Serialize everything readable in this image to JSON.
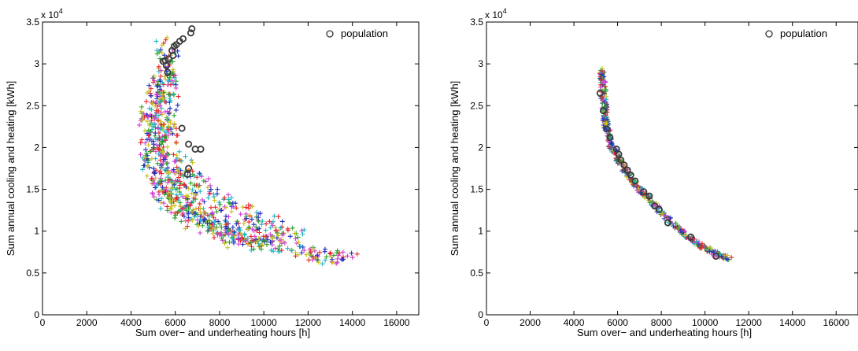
{
  "chart_data": [
    {
      "type": "scatter",
      "xlabel": "Sum over− and underheating hours [h]",
      "ylabel": "Sum annual cooling and heating [kWh]",
      "xlim": [
        0,
        17000
      ],
      "ylim": [
        0,
        35000
      ],
      "xticks": [
        "0",
        "2000",
        "4000",
        "6000",
        "8000",
        "10000",
        "12000",
        "14000",
        "16000"
      ],
      "yticks": [
        "0",
        "0.5",
        "1",
        "1.5",
        "2",
        "2.5",
        "3",
        "3.5"
      ],
      "y_multiplier": "x 10",
      "y_multiplier_exp": "4",
      "legend": {
        "label": "population",
        "position": "top-right"
      },
      "generation_colors": [
        "#e6262a",
        "#2aa02a",
        "#1f2fbf",
        "#22b5c4",
        "#d23fd2",
        "#c8c020",
        "#555555"
      ],
      "population": [
        [
          6750,
          34200
        ],
        [
          6700,
          33700
        ],
        [
          6350,
          33000
        ],
        [
          6200,
          32700
        ],
        [
          6050,
          32300
        ],
        [
          5950,
          32100
        ],
        [
          5850,
          31600
        ],
        [
          5900,
          31000
        ],
        [
          5700,
          30600
        ],
        [
          5550,
          30400
        ],
        [
          5450,
          30300
        ],
        [
          5600,
          29800
        ],
        [
          5650,
          29000
        ],
        [
          6300,
          22300
        ],
        [
          6600,
          20400
        ],
        [
          6900,
          19800
        ],
        [
          7150,
          19800
        ],
        [
          6600,
          17500
        ],
        [
          6550,
          16800
        ]
      ],
      "cloud_bands": [
        {
          "x": [
            5600,
            5400,
            5100,
            4900,
            4900,
            5100,
            5500,
            6000,
            6600,
            7300,
            8200,
            9200,
            10300,
            11500,
            12800,
            13500
          ],
          "y": [
            33000,
            29000,
            26000,
            23000,
            20000,
            18000,
            16000,
            14500,
            13000,
            11800,
            10600,
            9500,
            8600,
            7800,
            7000,
            6500
          ]
        },
        {
          "x": [
            5800,
            5700,
            5600,
            5500,
            5600,
            5900,
            6400,
            7000,
            7700,
            8500,
            9400,
            10500,
            11600
          ],
          "y": [
            32000,
            28500,
            25000,
            22500,
            20500,
            18500,
            16800,
            15300,
            14000,
            12800,
            11600,
            10400,
            9300
          ]
        },
        {
          "x": [
            5400,
            5300,
            5200,
            5100,
            5200,
            5500,
            6000,
            6600,
            7300,
            8100,
            9000,
            10000
          ],
          "y": [
            28000,
            25000,
            22000,
            19500,
            17000,
            15000,
            13200,
            11800,
            10600,
            9600,
            8800,
            8100
          ]
        }
      ]
    },
    {
      "type": "scatter",
      "xlabel": "Sum over− and underheating hours [h]",
      "ylabel": "Sum annual cooling and heating [kWh]",
      "xlim": [
        0,
        17000
      ],
      "ylim": [
        0,
        35000
      ],
      "xticks": [
        "0",
        "2000",
        "4000",
        "6000",
        "8000",
        "10000",
        "12000",
        "14000",
        "16000"
      ],
      "yticks": [
        "0",
        "0.5",
        "1",
        "1.5",
        "2",
        "2.5",
        "3",
        "3.5"
      ],
      "y_multiplier": "x 10",
      "y_multiplier_exp": "4",
      "legend": {
        "label": "population",
        "position": "top-right"
      },
      "generation_colors": [
        "#e6262a",
        "#2aa02a",
        "#1f2fbf",
        "#22b5c4",
        "#d23fd2",
        "#c8c020",
        "#555555"
      ],
      "population": [
        [
          5200,
          26500
        ],
        [
          5350,
          24400
        ],
        [
          5500,
          22200
        ],
        [
          5650,
          21200
        ],
        [
          5950,
          19800
        ],
        [
          6050,
          19200
        ],
        [
          6150,
          18500
        ],
        [
          6300,
          17900
        ],
        [
          6450,
          17300
        ],
        [
          6600,
          16700
        ],
        [
          6800,
          16000
        ],
        [
          7200,
          14700
        ],
        [
          7450,
          14200
        ],
        [
          7700,
          13000
        ],
        [
          7900,
          12600
        ],
        [
          8300,
          11000
        ],
        [
          9350,
          9300
        ],
        [
          10500,
          7000
        ]
      ],
      "front": {
        "x": [
          5300,
          5350,
          5400,
          5500,
          5700,
          6000,
          6400,
          6900,
          7500,
          8200,
          9000,
          9800,
          10500,
          11100
        ],
        "y": [
          29300,
          27000,
          24500,
          22300,
          20300,
          18600,
          17000,
          15300,
          13600,
          11700,
          9800,
          8300,
          7300,
          6700
        ]
      }
    }
  ]
}
